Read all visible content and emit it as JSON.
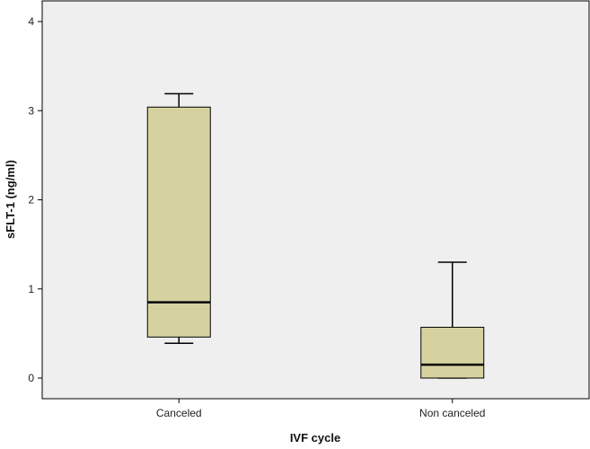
{
  "chart_data": {
    "type": "boxplot",
    "title": "",
    "xlabel": "IVF cycle",
    "ylabel": "sFLT-1 (ng/ml)",
    "ylim": [
      -0.2,
      4.2
    ],
    "yticks": [
      0,
      1,
      2,
      3,
      4
    ],
    "grid": false,
    "categories": [
      "Canceled",
      "Non canceled"
    ],
    "boxes": [
      {
        "category": "Canceled",
        "whisker_low": 0.39,
        "q1": 0.46,
        "median": 0.85,
        "q3": 3.04,
        "whisker_high": 3.19
      },
      {
        "category": "Non canceled",
        "whisker_low": 0.0,
        "q1": 0.0,
        "median": 0.15,
        "q3": 0.57,
        "whisker_high": 1.3
      }
    ],
    "colors": {
      "plot_background": "#efefef",
      "box_fill": "#d6d2a0",
      "stroke": "#000000"
    }
  }
}
